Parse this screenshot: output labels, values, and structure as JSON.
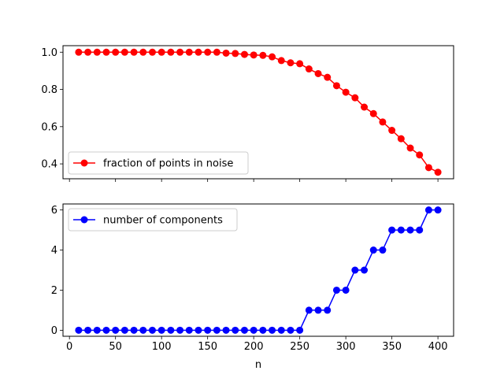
{
  "chart_data": [
    {
      "type": "line",
      "title": "",
      "xlabel": "",
      "ylabel": "",
      "x": [
        10,
        20,
        30,
        40,
        50,
        60,
        70,
        80,
        90,
        100,
        110,
        120,
        130,
        140,
        150,
        160,
        170,
        180,
        190,
        200,
        210,
        220,
        230,
        240,
        250,
        260,
        270,
        280,
        290,
        300,
        310,
        320,
        330,
        340,
        350,
        360,
        370,
        380,
        390,
        400
      ],
      "series": [
        {
          "name": "fraction of points in noise",
          "color": "#ff0000",
          "values": [
            1.0,
            1.0,
            1.0,
            1.0,
            1.0,
            1.0,
            1.0,
            1.0,
            1.0,
            1.0,
            1.0,
            1.0,
            1.0,
            1.0,
            1.0,
            1.0,
            0.995,
            0.993,
            0.988,
            0.985,
            0.983,
            0.975,
            0.955,
            0.943,
            0.938,
            0.91,
            0.885,
            0.865,
            0.82,
            0.785,
            0.755,
            0.705,
            0.67,
            0.625,
            0.58,
            0.535,
            0.485,
            0.448,
            0.38,
            0.355
          ]
        }
      ],
      "xlim": [
        -7,
        417
      ],
      "ylim": [
        0.32,
        1.035
      ],
      "xticks": [
        0,
        50,
        100,
        150,
        200,
        250,
        300,
        350,
        400
      ],
      "yticks": [
        0.4,
        0.6,
        0.8,
        1.0
      ],
      "ytick_labels": [
        "0.4",
        "0.6",
        "0.8",
        "1.0"
      ],
      "show_xtick_labels": false,
      "legend": "lower-left",
      "grid": false
    },
    {
      "type": "line",
      "title": "",
      "xlabel": "n",
      "ylabel": "",
      "x": [
        10,
        20,
        30,
        40,
        50,
        60,
        70,
        80,
        90,
        100,
        110,
        120,
        130,
        140,
        150,
        160,
        170,
        180,
        190,
        200,
        210,
        220,
        230,
        240,
        250,
        260,
        270,
        280,
        290,
        300,
        310,
        320,
        330,
        340,
        350,
        360,
        370,
        380,
        390,
        400
      ],
      "series": [
        {
          "name": "number of components",
          "color": "#0000ff",
          "values": [
            0,
            0,
            0,
            0,
            0,
            0,
            0,
            0,
            0,
            0,
            0,
            0,
            0,
            0,
            0,
            0,
            0,
            0,
            0,
            0,
            0,
            0,
            0,
            0,
            0,
            1,
            1,
            1,
            2,
            2,
            3,
            3,
            4,
            4,
            5,
            5,
            5,
            5,
            6,
            6
          ]
        }
      ],
      "xlim": [
        -7,
        417
      ],
      "ylim": [
        -0.3,
        6.3
      ],
      "xticks": [
        0,
        50,
        100,
        150,
        200,
        250,
        300,
        350,
        400
      ],
      "xtick_labels": [
        "0",
        "50",
        "100",
        "150",
        "200",
        "250",
        "300",
        "350",
        "400"
      ],
      "yticks": [
        0,
        2,
        4,
        6
      ],
      "ytick_labels": [
        "0",
        "2",
        "4",
        "6"
      ],
      "show_xtick_labels": true,
      "legend": "upper-left",
      "grid": false
    }
  ]
}
